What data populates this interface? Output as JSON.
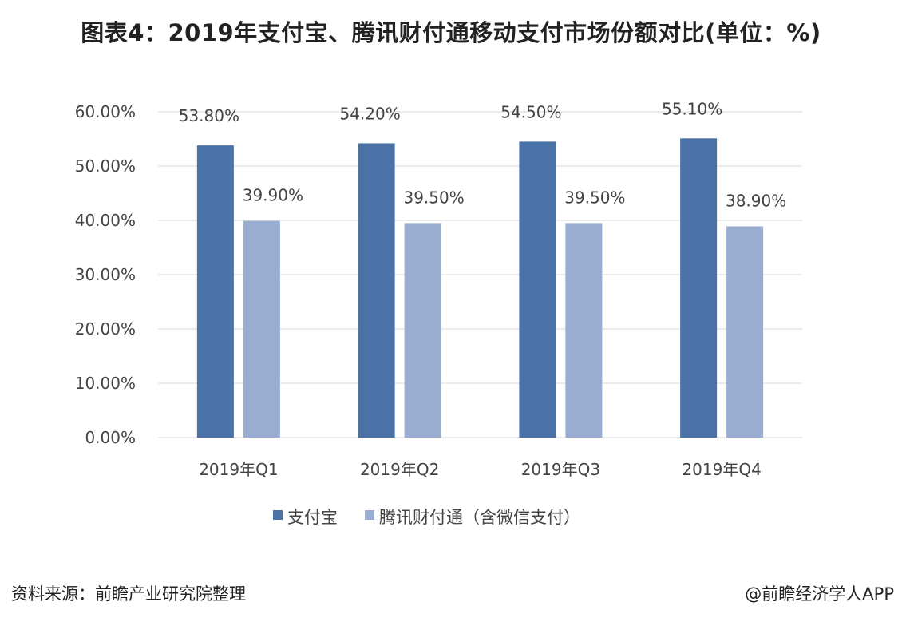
{
  "title": "图表4：2019年支付宝、腾讯财付通移动支付市场份额对比(单位：%)",
  "source": "资料来源：前瞻产业研究院整理",
  "credit": "@前瞻经济学人APP",
  "chart_data": {
    "type": "bar",
    "categories": [
      "2019年Q1",
      "2019年Q2",
      "2019年Q3",
      "2019年Q4"
    ],
    "series": [
      {
        "name": "支付宝",
        "color": "#4a72a6",
        "values": [
          53.8,
          54.2,
          54.5,
          55.1
        ],
        "labels": [
          "53.80%",
          "54.20%",
          "54.50%",
          "55.10%"
        ]
      },
      {
        "name": "腾讯财付通（含微信支付）",
        "color": "#98adcf",
        "values": [
          39.9,
          39.5,
          39.5,
          38.9
        ],
        "labels": [
          "39.90%",
          "39.50%",
          "39.50%",
          "38.90%"
        ]
      }
    ],
    "ylim": [
      0,
      60
    ],
    "yticks": [
      "0.00%",
      "10.00%",
      "20.00%",
      "30.00%",
      "40.00%",
      "50.00%",
      "60.00%"
    ],
    "grid": true,
    "legend": "bottom"
  }
}
